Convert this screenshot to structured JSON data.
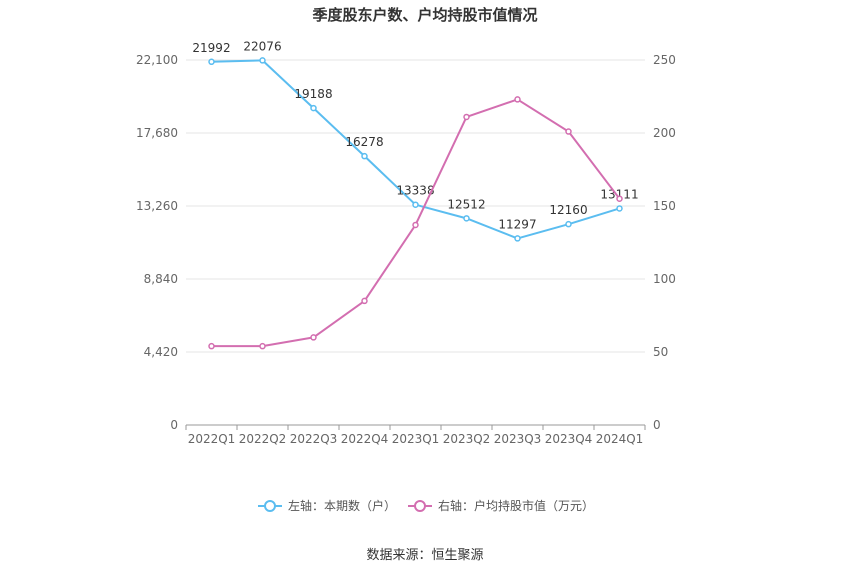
{
  "chart_data": {
    "type": "line",
    "title": "季度股东户数、户均持股市值情况",
    "categories": [
      "2022Q1",
      "2022Q2",
      "2022Q3",
      "2022Q4",
      "2023Q1",
      "2023Q2",
      "2023Q3",
      "2023Q4",
      "2024Q1"
    ],
    "y_left": {
      "range": [
        0,
        22100
      ],
      "ticks": [
        "0",
        "4,420",
        "8,840",
        "13,260",
        "17,680",
        "22,100"
      ],
      "tick_values": [
        0,
        4420,
        8840,
        13260,
        17680,
        22100
      ]
    },
    "y_right": {
      "range": [
        0,
        250
      ],
      "ticks": [
        "0",
        "50",
        "100",
        "150",
        "200",
        "250"
      ],
      "tick_values": [
        0,
        50,
        100,
        150,
        200,
        250
      ]
    },
    "series": [
      {
        "name": "左轴：本期数（户）",
        "axis": "left",
        "color": "#5bbdf0",
        "values": [
          21992,
          22076,
          19188,
          16278,
          13338,
          12512,
          11297,
          12160,
          13111
        ],
        "labels": [
          "21992",
          "22076",
          "19188",
          "16278",
          "13338",
          "12512",
          "11297",
          "12160",
          "13111"
        ]
      },
      {
        "name": "右轴：户均持股市值（万元）",
        "axis": "right",
        "color": "#d36eb0",
        "values": [
          54,
          54,
          60,
          85,
          137,
          211,
          223,
          201,
          155
        ]
      }
    ],
    "grid": true,
    "legend_position": "bottom-center"
  },
  "footer": {
    "source": "数据来源：恒生聚源"
  }
}
